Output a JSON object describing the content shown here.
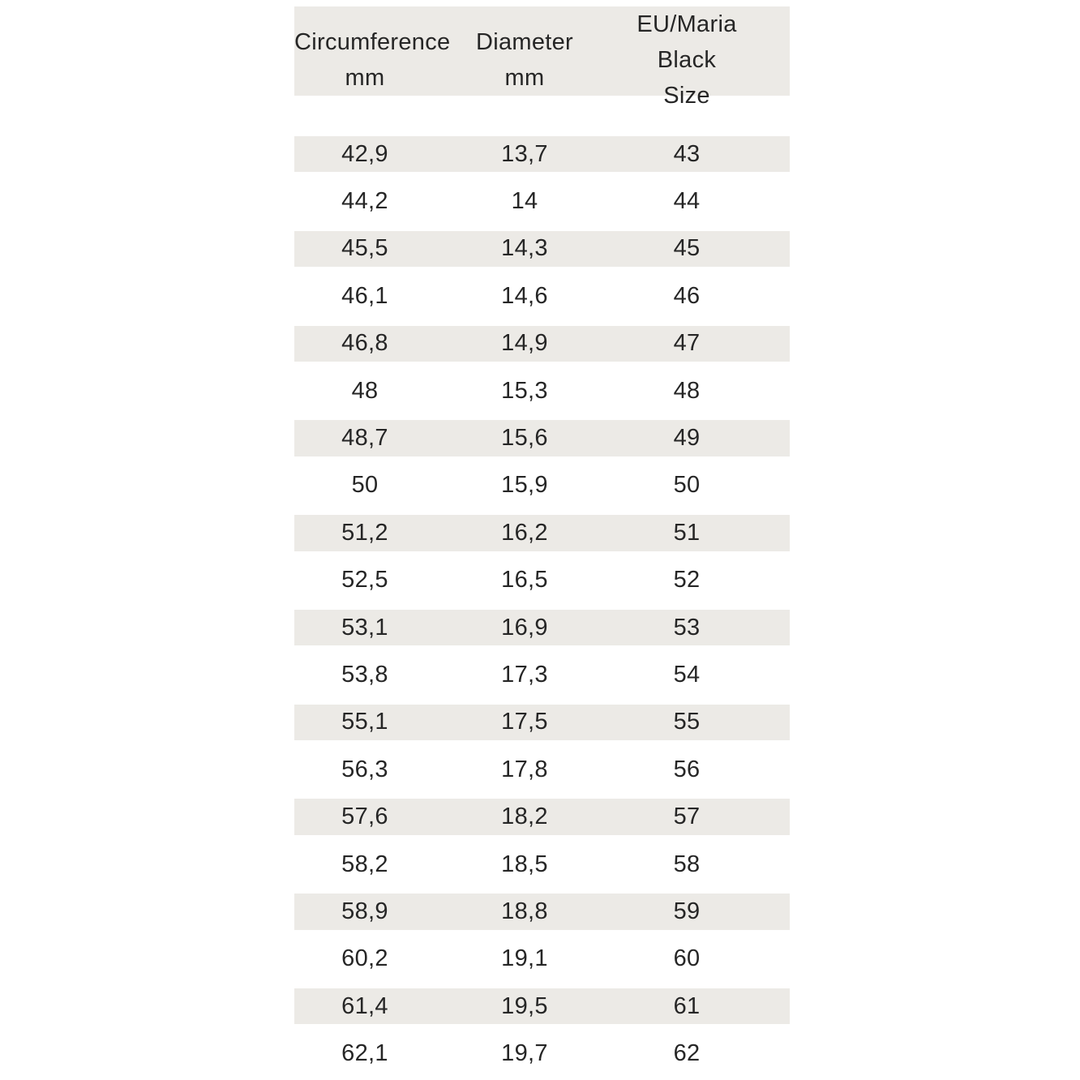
{
  "colors": {
    "stripe": "#eceae6",
    "text": "#262626",
    "background": "#ffffff"
  },
  "chart_data": {
    "type": "table",
    "title": "",
    "columns": [
      {
        "label": "Circumference",
        "unit": "mm"
      },
      {
        "label": "Diameter",
        "unit": "mm"
      },
      {
        "label": "EU/Maria Black",
        "unit": "Size"
      }
    ],
    "rows": [
      {
        "circumference": "42,9",
        "diameter": "13,7",
        "size": "43"
      },
      {
        "circumference": "44,2",
        "diameter": "14",
        "size": "44"
      },
      {
        "circumference": "45,5",
        "diameter": "14,3",
        "size": "45"
      },
      {
        "circumference": "46,1",
        "diameter": "14,6",
        "size": "46"
      },
      {
        "circumference": "46,8",
        "diameter": "14,9",
        "size": "47"
      },
      {
        "circumference": "48",
        "diameter": "15,3",
        "size": "48"
      },
      {
        "circumference": "48,7",
        "diameter": "15,6",
        "size": "49"
      },
      {
        "circumference": "50",
        "diameter": "15,9",
        "size": "50"
      },
      {
        "circumference": "51,2",
        "diameter": "16,2",
        "size": "51"
      },
      {
        "circumference": "52,5",
        "diameter": "16,5",
        "size": "52"
      },
      {
        "circumference": "53,1",
        "diameter": "16,9",
        "size": "53"
      },
      {
        "circumference": "53,8",
        "diameter": "17,3",
        "size": "54"
      },
      {
        "circumference": "55,1",
        "diameter": "17,5",
        "size": "55"
      },
      {
        "circumference": "56,3",
        "diameter": "17,8",
        "size": "56"
      },
      {
        "circumference": "57,6",
        "diameter": "18,2",
        "size": "57"
      },
      {
        "circumference": "58,2",
        "diameter": "18,5",
        "size": "58"
      },
      {
        "circumference": "58,9",
        "diameter": "18,8",
        "size": "59"
      },
      {
        "circumference": "60,2",
        "diameter": "19,1",
        "size": "60"
      },
      {
        "circumference": "61,4",
        "diameter": "19,5",
        "size": "61"
      },
      {
        "circumference": "62,1",
        "diameter": "19,7",
        "size": "62"
      }
    ]
  }
}
